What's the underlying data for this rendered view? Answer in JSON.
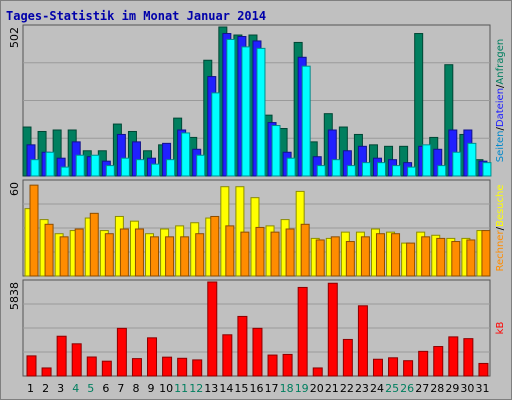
{
  "title": "Tages-Statistik im Monat Januar 2014",
  "chart_data": [
    {
      "type": "bar",
      "panel": "top",
      "y_top_label": "502",
      "ylim": [
        0,
        502
      ],
      "categories": [
        "1",
        "2",
        "3",
        "4",
        "5",
        "6",
        "7",
        "8",
        "9",
        "10",
        "11",
        "12",
        "13",
        "14",
        "15",
        "16",
        "17",
        "18",
        "19",
        "20",
        "21",
        "22",
        "23",
        "24",
        "25",
        "26",
        "27",
        "28",
        "29",
        "30",
        "31"
      ],
      "series": [
        {
          "name": "Anfragen",
          "color": "#007f5f",
          "values": [
            165,
            150,
            155,
            155,
            85,
            85,
            175,
            150,
            85,
            105,
            195,
            130,
            390,
            505,
            475,
            475,
            205,
            160,
            450,
            115,
            210,
            165,
            140,
            105,
            100,
            100,
            480,
            130,
            375,
            140,
            55
          ]
        },
        {
          "name": "Dateien",
          "color": "#2020ff",
          "values": [
            105,
            80,
            60,
            115,
            65,
            50,
            140,
            115,
            60,
            110,
            155,
            90,
            335,
            480,
            470,
            455,
            180,
            80,
            400,
            65,
            155,
            85,
            100,
            60,
            55,
            45,
            100,
            90,
            155,
            155,
            50
          ]
        },
        {
          "name": "Seiten",
          "color": "#00ffff",
          "values": [
            55,
            80,
            30,
            70,
            70,
            35,
            60,
            55,
            40,
            55,
            145,
            70,
            280,
            460,
            435,
            430,
            170,
            60,
            370,
            35,
            55,
            35,
            45,
            45,
            35,
            30,
            105,
            35,
            80,
            110,
            45
          ]
        }
      ],
      "legend": "right, vertical"
    },
    {
      "type": "bar",
      "panel": "middle",
      "y_top_label": "60",
      "ylim": [
        0,
        60
      ],
      "categories": [
        "1",
        "2",
        "3",
        "4",
        "5",
        "6",
        "7",
        "8",
        "9",
        "10",
        "11",
        "12",
        "13",
        "14",
        "15",
        "16",
        "17",
        "18",
        "19",
        "20",
        "21",
        "22",
        "23",
        "24",
        "25",
        "26",
        "27",
        "28",
        "29",
        "30",
        "31"
      ],
      "series": [
        {
          "name": "Besuche",
          "color": "#ffff00",
          "values": [
            43,
            36,
            27,
            29,
            37,
            29,
            38,
            35,
            27,
            30,
            32,
            34,
            37,
            57,
            57,
            50,
            32,
            36,
            54,
            24,
            24,
            28,
            28,
            30,
            28,
            21,
            28,
            26,
            24,
            24,
            29
          ]
        },
        {
          "name": "Rechner",
          "color": "#ff8c00",
          "values": [
            58,
            33,
            25,
            30,
            40,
            27,
            30,
            30,
            25,
            25,
            25,
            27,
            38,
            32,
            28,
            31,
            28,
            30,
            33,
            23,
            25,
            22,
            25,
            27,
            27,
            21,
            25,
            24,
            22,
            23,
            29
          ]
        }
      ],
      "legend": "right, vertical"
    },
    {
      "type": "bar",
      "panel": "bottom",
      "y_top_label": "5838",
      "ylim": [
        0,
        5838
      ],
      "categories": [
        "1",
        "2",
        "3",
        "4",
        "5",
        "6",
        "7",
        "8",
        "9",
        "10",
        "11",
        "12",
        "13",
        "14",
        "15",
        "16",
        "17",
        "18",
        "19",
        "20",
        "21",
        "22",
        "23",
        "24",
        "25",
        "26",
        "27",
        "28",
        "29",
        "30",
        "31"
      ],
      "series": [
        {
          "name": "kB",
          "color": "#ff0000",
          "values": [
            1250,
            500,
            2470,
            2000,
            1180,
            920,
            2960,
            1080,
            2370,
            1170,
            1100,
            1000,
            5838,
            2560,
            3700,
            2960,
            1300,
            1340,
            5500,
            500,
            5760,
            2270,
            4360,
            1040,
            1130,
            950,
            1530,
            1830,
            2430,
            2320,
            780
          ]
        }
      ],
      "legend": "right, vertical"
    }
  ],
  "x_axis": {
    "labels": [
      "1",
      "2",
      "3",
      "4",
      "5",
      "6",
      "7",
      "8",
      "9",
      "10",
      "11",
      "12",
      "13",
      "14",
      "15",
      "16",
      "17",
      "18",
      "19",
      "20",
      "21",
      "22",
      "23",
      "24",
      "25",
      "26",
      "27",
      "28",
      "29",
      "30",
      "31"
    ],
    "weekend_days": [
      "4",
      "5",
      "11",
      "12",
      "18",
      "19",
      "25",
      "26"
    ],
    "weekday_color": "#000000",
    "weekend_color": "#007f5f"
  }
}
